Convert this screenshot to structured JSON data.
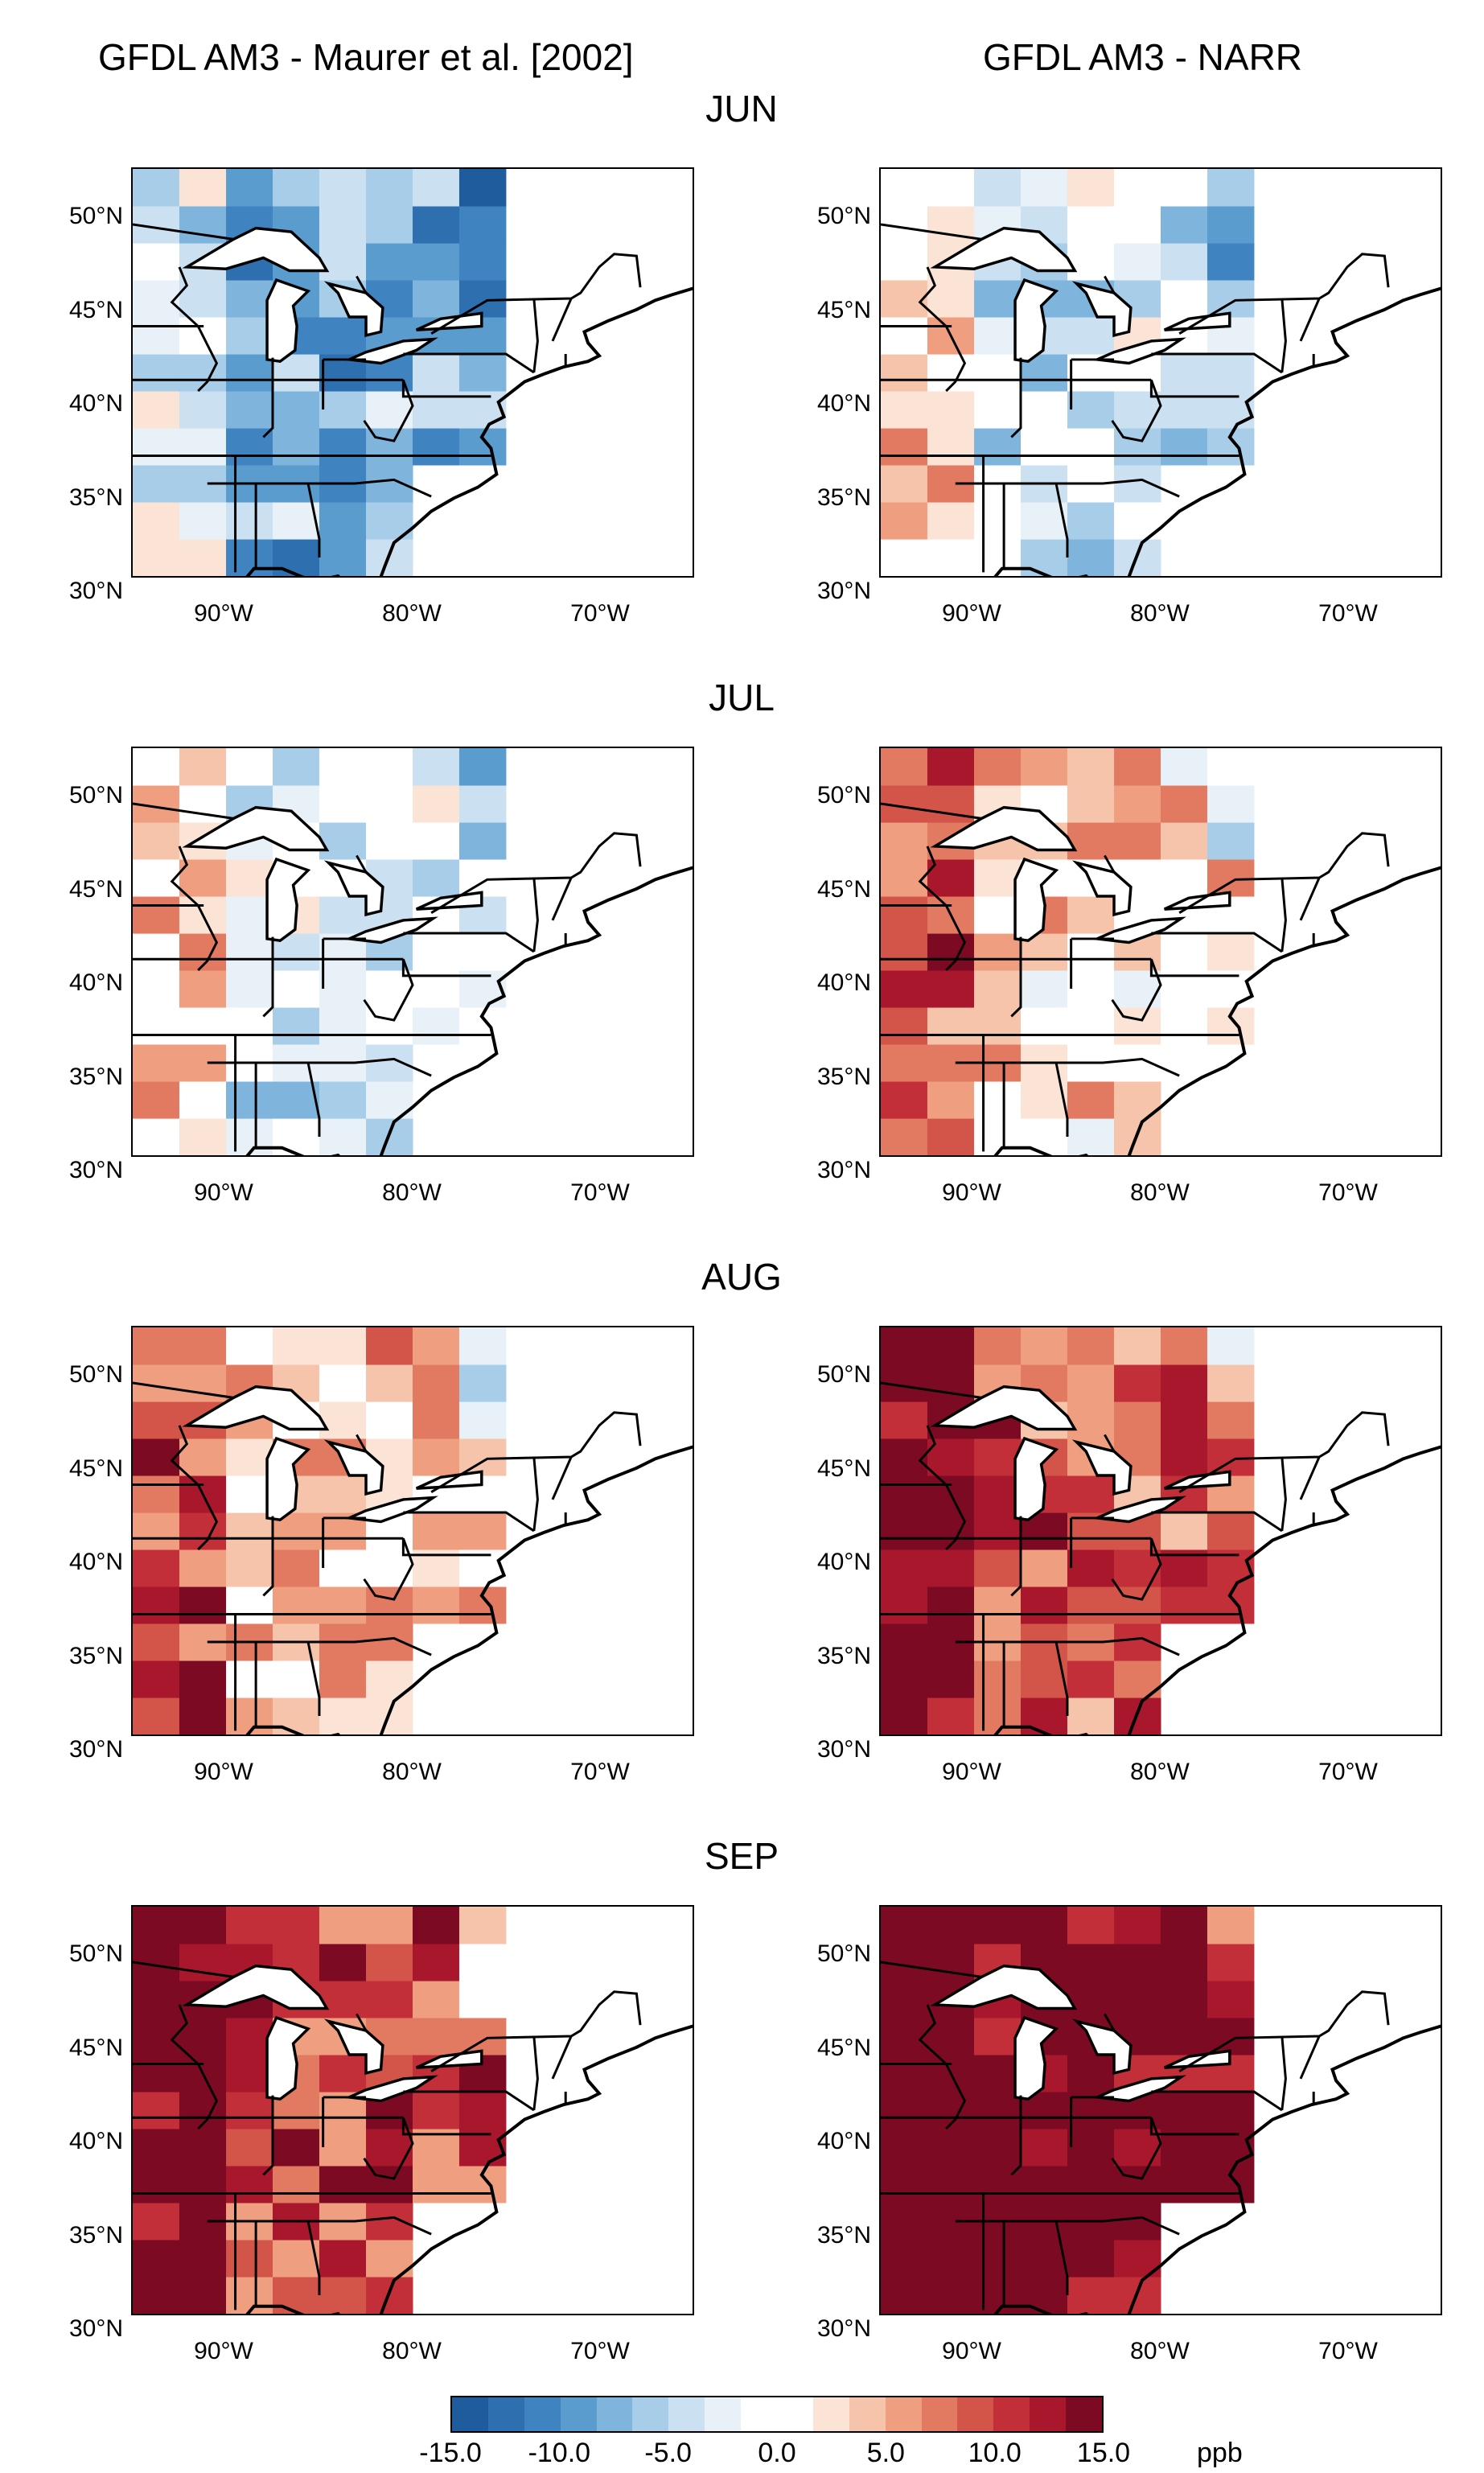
{
  "column_titles": [
    "GFDL AM3 - Maurer et al. [2002]",
    "GFDL AM3 - NARR"
  ],
  "months": [
    "JUN",
    "JUL",
    "AUG",
    "SEP"
  ],
  "lat_labels": [
    "50°N",
    "45°N",
    "40°N",
    "35°N",
    "30°N"
  ],
  "lon_labels": [
    "90°W",
    "80°W",
    "70°W"
  ],
  "colorbar": {
    "labels": [
      "-15.0",
      "-10.0",
      "-5.0",
      "0.0",
      "5.0",
      "10.0",
      "15.0"
    ],
    "unit": "ppb",
    "range": [
      -15,
      15
    ],
    "colors": [
      "#1f5c9e",
      "#2e6fb0",
      "#3f83c1",
      "#5b9ccf",
      "#7fb4dc",
      "#a7cde8",
      "#cbe1f1",
      "#e8f1f8",
      "#ffffff",
      "#ffffff",
      "#fbe4d6",
      "#f6c4aa",
      "#ef9f80",
      "#e27a62",
      "#d35448",
      "#c32f38",
      "#a8172c",
      "#7c0a22"
    ]
  },
  "map_extent": {
    "lon": [
      -95,
      -65
    ],
    "lat": [
      30,
      52
    ]
  }
}
